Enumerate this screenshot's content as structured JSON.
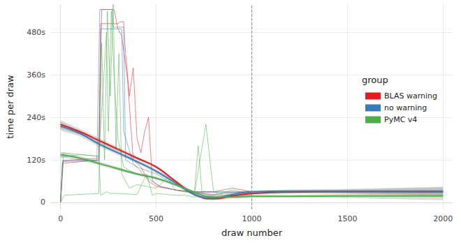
{
  "chart_data": {
    "type": "line",
    "x_label": "draw number",
    "y_label": "time per draw",
    "legend_title": "group",
    "legend": "right",
    "grid": true,
    "xlim": [
      -50,
      2050
    ],
    "xticks": [
      0,
      500,
      1000,
      1500,
      2000
    ],
    "ylim": [
      -20,
      560
    ],
    "yticks": [
      0,
      {
        "value": 120,
        "label": "120s"
      },
      {
        "value": 240,
        "label": "240s"
      },
      {
        "value": 360,
        "label": "360s"
      },
      {
        "value": 480,
        "label": "480s"
      }
    ],
    "vline": [
      1000
    ],
    "x": [
      0,
      100,
      200,
      300,
      400,
      500,
      600,
      700,
      800,
      900,
      1000,
      1200,
      1500,
      2000
    ],
    "series": [
      {
        "name": "BLAS warning",
        "color": "#e41a1c",
        "values": [
          220,
          200,
          175,
          150,
          125,
          100,
          60,
          22,
          10,
          18,
          25,
          29,
          30,
          30
        ],
        "lower": [
          208,
          192,
          168,
          144,
          120,
          95,
          55,
          18,
          6,
          14,
          21,
          25,
          24,
          18
        ],
        "upper": [
          232,
          208,
          182,
          156,
          130,
          105,
          65,
          26,
          14,
          22,
          29,
          33,
          36,
          42
        ],
        "runs": [
          {
            "x": [
              0,
              15,
              200,
              210,
              300,
              310,
              330,
              340,
              360,
              380,
              400,
              420,
              440,
              460,
              480,
              520,
              560,
              600,
              650,
              700,
              750,
              800,
              900,
              1000
            ],
            "values": [
              0,
              118,
              125,
              505,
              505,
              510,
              510,
              420,
              300,
              380,
              180,
              140,
              200,
              240,
              60,
              45,
              40,
              35,
              30,
              28,
              25,
              22,
              28,
              30
            ]
          },
          {
            "x": [
              0,
              10,
              200,
              215,
              280,
              300,
              320,
              350,
              380,
              420,
              460,
              500,
              550,
              600,
              700,
              800,
              900,
              1000
            ],
            "values": [
              0,
              110,
              120,
              545,
              545,
              490,
              470,
              350,
              120,
              100,
              60,
              45,
              40,
              35,
              30,
              30,
              40,
              30
            ]
          }
        ]
      },
      {
        "name": "no warning",
        "color": "#377eb8",
        "values": [
          215,
          195,
          165,
          140,
          115,
          88,
          55,
          22,
          12,
          22,
          30,
          32,
          32,
          32
        ],
        "lower": [
          203,
          187,
          158,
          134,
          110,
          83,
          50,
          18,
          8,
          18,
          26,
          28,
          26,
          20
        ],
        "upper": [
          227,
          203,
          172,
          146,
          120,
          93,
          60,
          26,
          16,
          26,
          34,
          36,
          38,
          44
        ],
        "runs": [
          {
            "x": [
              0,
              10,
              190,
              205,
              270,
              275,
              330,
              340,
              400,
              500,
              600,
              700,
              800,
              1000
            ],
            "values": [
              0,
              118,
              120,
              545,
              545,
              495,
              495,
              120,
              100,
              80,
              50,
              30,
              30,
              30
            ]
          },
          {
            "x": [
              0,
              12,
              200,
              210,
              320,
              330,
              380,
              450,
              520,
              600,
              700,
              800,
              1000
            ],
            "values": [
              0,
              115,
              118,
              490,
              490,
              200,
              110,
              70,
              45,
              35,
              28,
              28,
              28
            ]
          }
        ]
      },
      {
        "name": "PyMC v4",
        "color": "#4daf4a",
        "values": [
          135,
          125,
          110,
          95,
          80,
          68,
          50,
          28,
          15,
          15,
          17,
          17,
          18,
          18
        ],
        "lower": [
          127,
          119,
          105,
          90,
          76,
          64,
          46,
          24,
          11,
          11,
          13,
          13,
          12,
          6
        ],
        "upper": [
          143,
          131,
          115,
          100,
          84,
          72,
          54,
          32,
          19,
          19,
          21,
          21,
          24,
          30
        ],
        "runs": [
          {
            "x": [
              0,
              20,
              200,
              215,
              230,
              245,
              260,
              275,
              290,
              305,
              320,
              340,
              360,
              400,
              450,
              500,
              560,
              600,
              650,
              700,
              760,
              800,
              850,
              900,
              950,
              1000
            ],
            "values": [
              0,
              20,
              25,
              450,
              120,
              540,
              300,
              560,
              150,
              420,
              80,
              60,
              40,
              50,
              45,
              40,
              70,
              35,
              30,
              25,
              220,
              30,
              20,
              25,
              20,
              25
            ]
          },
          {
            "x": [
              0,
              10,
              100,
              200,
              220,
              240,
              250,
              265,
              280,
              300,
              330,
              360,
              400,
              500,
              550,
              600,
              650,
              700,
              720,
              740,
              800,
              900,
              1000
            ],
            "values": [
              130,
              128,
              135,
              130,
              300,
              480,
              200,
              540,
              350,
              180,
              100,
              90,
              80,
              70,
              60,
              50,
              40,
              30,
              160,
              25,
              20,
              20,
              20
            ]
          },
          {
            "x": [
              0,
              15,
              200,
              210,
              240,
              260,
              300,
              400,
              450,
              480,
              500,
              600,
              650,
              700,
              800,
              900,
              1000
            ],
            "values": [
              0,
              140,
              130,
              20,
              30,
              25,
              25,
              22,
              80,
              20,
              25,
              20,
              20,
              15,
              20,
              35,
              25
            ]
          }
        ]
      }
    ]
  }
}
